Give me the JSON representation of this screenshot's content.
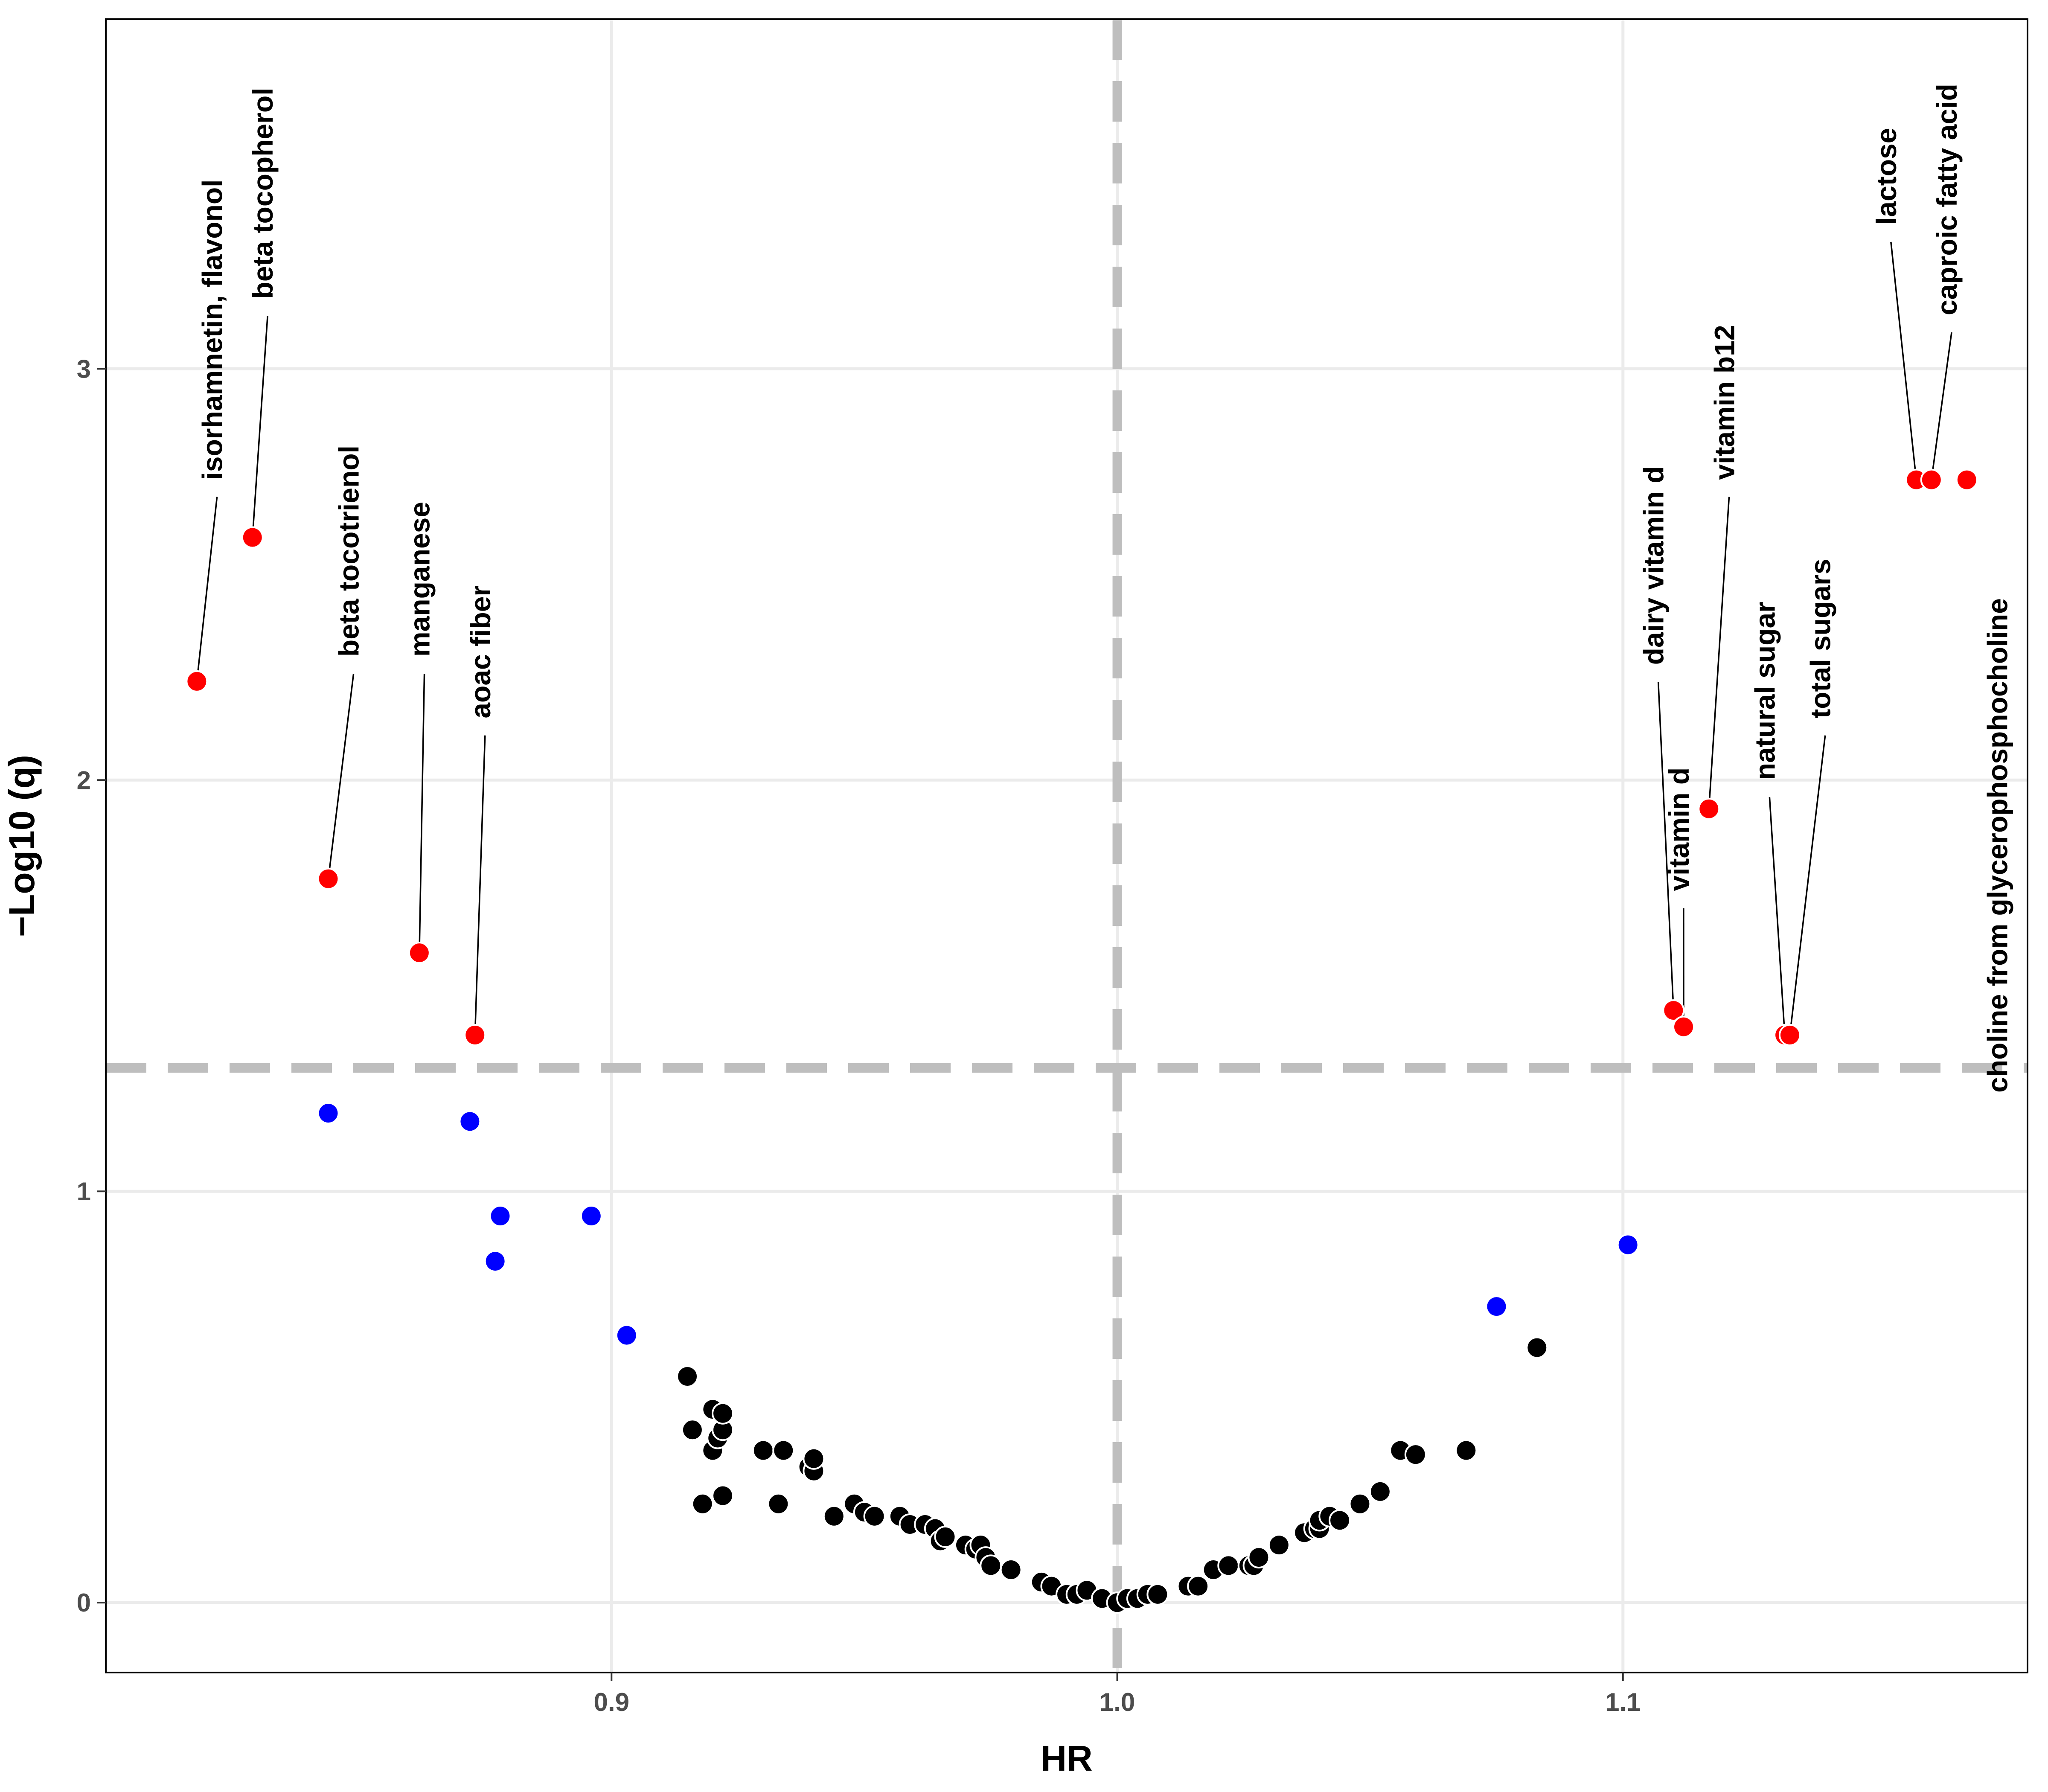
{
  "chart_data": {
    "type": "scatter",
    "title": "",
    "xlabel": "HR",
    "ylabel": "−Log10 (q)",
    "xlim": [
      0.8,
      1.18
    ],
    "ylim": [
      -0.17,
      3.85
    ],
    "xticks": [
      0.9,
      1.0,
      1.1
    ],
    "xtick_labels": [
      "0.9",
      "1.0",
      "1.1"
    ],
    "yticks": [
      0,
      1,
      2,
      3
    ],
    "ytick_labels": [
      "0",
      "1",
      "2",
      "3"
    ],
    "grid": true,
    "legend": "none",
    "thresholds": {
      "hr": 1.0,
      "neg_log10_q": 1.3
    },
    "colors": {
      "significant": "#ff0000",
      "suggestive": "#0000ff",
      "nonsignificant": "#000000",
      "threshold_line": "#bebebe",
      "grid": "#ebebeb"
    },
    "significant": [
      {
        "label": "isorhamnetin, flavonol",
        "hr": 0.818,
        "y": 2.24
      },
      {
        "label": "beta tocopherol",
        "hr": 0.829,
        "y": 2.59
      },
      {
        "label": "beta tocotrienol",
        "hr": 0.844,
        "y": 1.76
      },
      {
        "label": "manganese",
        "hr": 0.862,
        "y": 1.58
      },
      {
        "label": "aoac fiber",
        "hr": 0.873,
        "y": 1.38
      },
      {
        "label": "dairy vitamin d",
        "hr": 1.11,
        "y": 1.44
      },
      {
        "label": "vitamin d",
        "hr": 1.112,
        "y": 1.4
      },
      {
        "label": "vitamin b12",
        "hr": 1.117,
        "y": 1.93
      },
      {
        "label": "natural sugar",
        "hr": 1.132,
        "y": 1.38
      },
      {
        "label": "total sugars",
        "hr": 1.133,
        "y": 1.38
      },
      {
        "label": "lactose",
        "hr": 1.158,
        "y": 2.73
      },
      {
        "label": "caproic fatty acid",
        "hr": 1.161,
        "y": 2.73
      },
      {
        "label": "choline from glycerophosphocholine",
        "hr": 1.168,
        "y": 2.73
      }
    ],
    "suggestive": [
      {
        "hr": 0.844,
        "y": 1.19
      },
      {
        "hr": 0.872,
        "y": 1.17
      },
      {
        "hr": 0.878,
        "y": 0.94
      },
      {
        "hr": 0.877,
        "y": 0.83
      },
      {
        "hr": 0.896,
        "y": 0.94
      },
      {
        "hr": 0.903,
        "y": 0.65
      },
      {
        "hr": 1.075,
        "y": 0.72
      },
      {
        "hr": 1.101,
        "y": 0.87
      }
    ],
    "nonsignificant": [
      [
        0.915,
        0.55
      ],
      [
        0.916,
        0.42
      ],
      [
        0.918,
        0.24
      ],
      [
        0.92,
        0.47
      ],
      [
        0.92,
        0.37
      ],
      [
        0.921,
        0.4
      ],
      [
        0.922,
        0.42
      ],
      [
        0.922,
        0.46
      ],
      [
        0.922,
        0.26
      ],
      [
        0.93,
        0.37
      ],
      [
        0.933,
        0.24
      ],
      [
        0.934,
        0.37
      ],
      [
        0.939,
        0.33
      ],
      [
        0.94,
        0.32
      ],
      [
        0.94,
        0.35
      ],
      [
        0.944,
        0.21
      ],
      [
        0.948,
        0.24
      ],
      [
        0.95,
        0.22
      ],
      [
        0.952,
        0.21
      ],
      [
        0.957,
        0.21
      ],
      [
        0.959,
        0.19
      ],
      [
        0.962,
        0.19
      ],
      [
        0.964,
        0.18
      ],
      [
        0.965,
        0.15
      ],
      [
        0.966,
        0.16
      ],
      [
        0.97,
        0.14
      ],
      [
        0.972,
        0.13
      ],
      [
        0.973,
        0.14
      ],
      [
        0.974,
        0.11
      ],
      [
        0.975,
        0.09
      ],
      [
        0.979,
        0.08
      ],
      [
        0.985,
        0.05
      ],
      [
        0.987,
        0.04
      ],
      [
        0.99,
        0.02
      ],
      [
        0.992,
        0.02
      ],
      [
        0.994,
        0.03
      ],
      [
        0.997,
        0.01
      ],
      [
        1.0,
        0.0
      ],
      [
        1.002,
        0.01
      ],
      [
        1.004,
        0.01
      ],
      [
        1.006,
        0.02
      ],
      [
        1.008,
        0.02
      ],
      [
        1.014,
        0.04
      ],
      [
        1.016,
        0.04
      ],
      [
        1.019,
        0.08
      ],
      [
        1.022,
        0.09
      ],
      [
        1.026,
        0.09
      ],
      [
        1.027,
        0.09
      ],
      [
        1.028,
        0.11
      ],
      [
        1.032,
        0.14
      ],
      [
        1.037,
        0.17
      ],
      [
        1.039,
        0.18
      ],
      [
        1.04,
        0.18
      ],
      [
        1.04,
        0.2
      ],
      [
        1.042,
        0.21
      ],
      [
        1.044,
        0.2
      ],
      [
        1.048,
        0.24
      ],
      [
        1.052,
        0.27
      ],
      [
        1.056,
        0.37
      ],
      [
        1.059,
        0.36
      ],
      [
        1.069,
        0.37
      ],
      [
        1.083,
        0.62
      ]
    ]
  }
}
